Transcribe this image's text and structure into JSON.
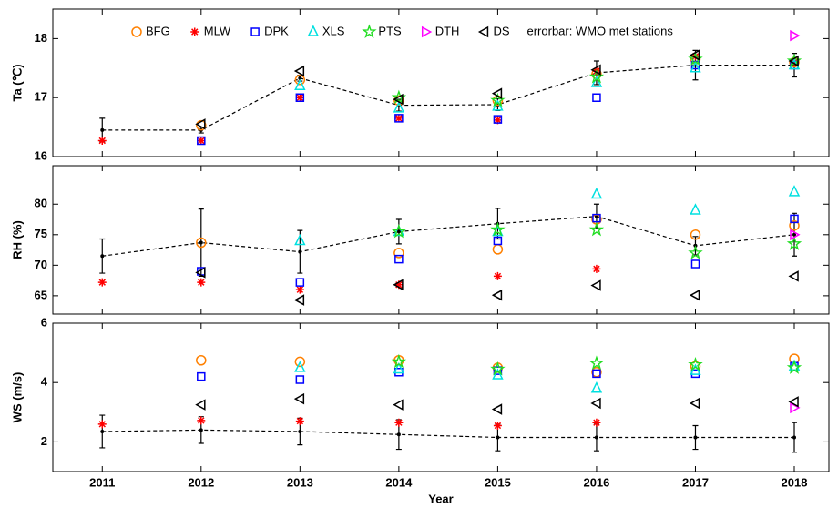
{
  "chart_data": [
    {
      "type": "scatter",
      "ylabel": "Ta (℃)",
      "legend_note": "errorbar: WMO met stations",
      "x": [
        2011,
        2012,
        2013,
        2014,
        2015,
        2016,
        2017,
        2018
      ],
      "xlim": [
        2010.5,
        2018.35
      ],
      "xticks": [
        2011,
        2012,
        2013,
        2014,
        2015,
        2016,
        2017,
        2018
      ],
      "ylim": [
        16,
        18.5
      ],
      "yticks": [
        16,
        17,
        18
      ],
      "series": [
        {
          "name": "BFG",
          "color": "#ff8000",
          "marker": "circle",
          "values": [
            null,
            16.53,
            17.3,
            16.95,
            16.95,
            17.4,
            17.65,
            17.6
          ]
        },
        {
          "name": "MLW",
          "color": "#ff0000",
          "marker": "asterisk",
          "values": [
            16.27,
            16.27,
            17.0,
            16.65,
            16.62,
            17.45,
            17.7,
            17.6
          ]
        },
        {
          "name": "DPK",
          "color": "#0000ff",
          "marker": "square",
          "values": [
            null,
            16.27,
            17.0,
            16.65,
            16.63,
            17.0,
            17.55,
            17.55
          ]
        },
        {
          "name": "XLS",
          "color": "#00e0e0",
          "marker": "triangle-up",
          "values": [
            null,
            null,
            17.2,
            16.82,
            16.85,
            17.25,
            17.5,
            17.55
          ]
        },
        {
          "name": "PTS",
          "color": "#22dd22",
          "marker": "star",
          "values": [
            null,
            null,
            null,
            17.0,
            16.95,
            17.35,
            17.65,
            17.62
          ]
        },
        {
          "name": "DTH",
          "color": "#ff00ff",
          "marker": "triangle-right",
          "values": [
            null,
            null,
            null,
            null,
            null,
            null,
            null,
            18.05
          ]
        },
        {
          "name": "DS",
          "color": "#000000",
          "marker": "triangle-left",
          "values": [
            null,
            16.55,
            17.45,
            16.97,
            17.07,
            17.47,
            17.72,
            17.62
          ]
        }
      ],
      "errorbar": {
        "color": "#000000",
        "values": [
          16.45,
          16.45,
          17.33,
          16.87,
          16.88,
          17.42,
          17.55,
          17.55
        ],
        "errors": [
          0.2,
          0.05,
          0.05,
          0.1,
          0.1,
          0.2,
          0.25,
          0.2
        ]
      }
    },
    {
      "type": "scatter",
      "ylabel": "RH (%)",
      "x": [
        2011,
        2012,
        2013,
        2014,
        2015,
        2016,
        2017,
        2018
      ],
      "xlim": [
        2010.5,
        2018.35
      ],
      "xticks": [
        2011,
        2012,
        2013,
        2014,
        2015,
        2016,
        2017,
        2018
      ],
      "ylim": [
        62,
        86.3
      ],
      "yticks": [
        65,
        70,
        75,
        80
      ],
      "series": [
        {
          "color": "#ff8000",
          "marker": "circle",
          "values": [
            null,
            73.7,
            null,
            72,
            72.6,
            77.5,
            75,
            76.5
          ]
        },
        {
          "color": "#ff0000",
          "marker": "asterisk",
          "values": [
            67.2,
            67.2,
            66,
            66.8,
            68.2,
            69.4,
            null,
            null
          ]
        },
        {
          "color": "#0000ff",
          "marker": "square",
          "values": [
            null,
            69,
            67.2,
            71,
            74,
            77.7,
            70.2,
            77.6
          ]
        },
        {
          "color": "#00e0e0",
          "marker": "triangle-up",
          "values": [
            null,
            null,
            74,
            75.5,
            75.5,
            81.6,
            79,
            82
          ]
        },
        {
          "color": "#22dd22",
          "marker": "star",
          "values": [
            null,
            null,
            null,
            75.5,
            75.8,
            75.8,
            72,
            73.5
          ]
        },
        {
          "color": "#ff00ff",
          "marker": "triangle-right",
          "values": [
            null,
            null,
            null,
            null,
            null,
            null,
            null,
            75
          ]
        },
        {
          "color": "#000000",
          "marker": "triangle-left",
          "values": [
            null,
            68.8,
            64.3,
            66.8,
            65.1,
            66.7,
            65.1,
            68.2
          ]
        }
      ],
      "errorbar": {
        "color": "#000000",
        "values": [
          71.5,
          73.7,
          72.2,
          75.5,
          76.8,
          78,
          73.2,
          75
        ],
        "errors": [
          2.8,
          5.5,
          3.5,
          2,
          2.5,
          2,
          1.5,
          3.5
        ]
      }
    },
    {
      "type": "scatter",
      "ylabel": "WS (m/s)",
      "xlabel": "Year",
      "x": [
        2011,
        2012,
        2013,
        2014,
        2015,
        2016,
        2017,
        2018
      ],
      "xlim": [
        2010.5,
        2018.35
      ],
      "xticks": [
        2011,
        2012,
        2013,
        2014,
        2015,
        2016,
        2017,
        2018
      ],
      "ylim": [
        1,
        6
      ],
      "yticks": [
        2,
        4,
        6
      ],
      "series": [
        {
          "color": "#ff8000",
          "marker": "circle",
          "values": [
            null,
            4.75,
            4.7,
            4.75,
            4.5,
            4.35,
            4.55,
            4.8
          ]
        },
        {
          "color": "#ff0000",
          "marker": "asterisk",
          "values": [
            2.6,
            2.72,
            2.7,
            2.65,
            2.55,
            2.65,
            null,
            null
          ]
        },
        {
          "color": "#0000ff",
          "marker": "square",
          "values": [
            null,
            4.2,
            4.1,
            4.35,
            4.4,
            4.3,
            4.3,
            4.55
          ]
        },
        {
          "color": "#00e0e0",
          "marker": "triangle-up",
          "values": [
            null,
            null,
            4.5,
            4.45,
            4.25,
            3.8,
            4.4,
            4.55
          ]
        },
        {
          "color": "#22dd22",
          "marker": "star",
          "values": [
            null,
            null,
            null,
            4.7,
            4.45,
            4.65,
            4.6,
            4.5
          ]
        },
        {
          "color": "#ff00ff",
          "marker": "triangle-right",
          "values": [
            null,
            null,
            null,
            null,
            null,
            null,
            null,
            3.15
          ]
        },
        {
          "color": "#000000",
          "marker": "triangle-left",
          "values": [
            null,
            3.25,
            3.45,
            3.25,
            3.1,
            3.3,
            3.3,
            3.35
          ]
        }
      ],
      "errorbar": {
        "color": "#000000",
        "values": [
          2.35,
          2.4,
          2.35,
          2.25,
          2.15,
          2.15,
          2.15,
          2.15
        ],
        "errors": [
          0.55,
          0.45,
          0.45,
          0.5,
          0.45,
          0.45,
          0.4,
          0.5
        ]
      }
    }
  ]
}
